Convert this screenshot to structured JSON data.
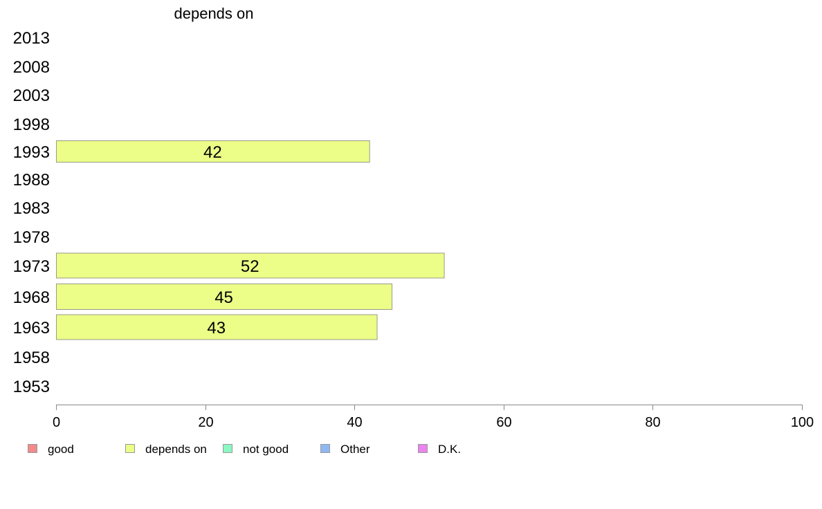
{
  "chart_data": {
    "type": "bar",
    "orientation": "horizontal",
    "title": "depends on",
    "categories": [
      "2013",
      "2008",
      "2003",
      "1998",
      "1993",
      "1988",
      "1983",
      "1978",
      "1973",
      "1968",
      "1963",
      "1958",
      "1953"
    ],
    "series": [
      {
        "name": "depends on",
        "values": [
          null,
          null,
          null,
          null,
          42,
          null,
          null,
          null,
          52,
          45,
          43,
          null,
          null
        ]
      }
    ],
    "xlim": [
      0,
      100
    ],
    "xticks": [
      0,
      20,
      40,
      60,
      80,
      100
    ],
    "grid": false,
    "legend_position": "bottom",
    "legend": [
      {
        "label": "good",
        "color": "#f28b8b"
      },
      {
        "label": "depends on",
        "color": "#ecfd88"
      },
      {
        "label": "not good",
        "color": "#8bf7c2"
      },
      {
        "label": "Other",
        "color": "#8fb8f2"
      },
      {
        "label": "D.K.",
        "color": "#ea84ee"
      }
    ],
    "bar_color": "#ecfd88",
    "bar_stroke": "#9a9a8a"
  }
}
